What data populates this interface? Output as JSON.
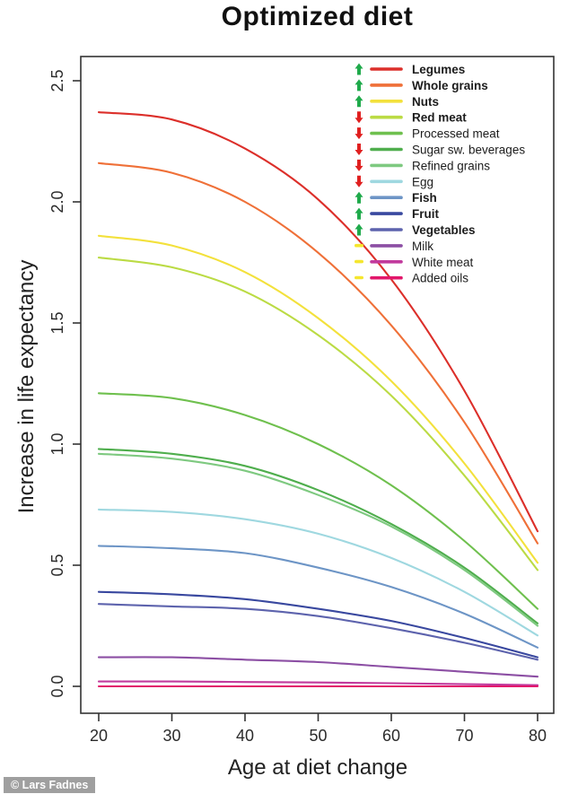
{
  "watermark": "© Lars Fadnes",
  "chart_data": {
    "type": "line",
    "title": "Optimized diet",
    "xlabel": "Age at diet change",
    "ylabel": "Increase in life expectancy",
    "x": [
      20,
      30,
      40,
      50,
      60,
      70,
      80
    ],
    "x_tick_labels": [
      "20",
      "30",
      "40",
      "50",
      "60",
      "70",
      "80"
    ],
    "y_ticks": [
      0.0,
      0.5,
      1.0,
      1.5,
      2.0,
      2.5
    ],
    "y_tick_labels": [
      "0.0",
      "0.5",
      "1.0",
      "1.5",
      "2.0",
      "2.5"
    ],
    "xlim": [
      20,
      80
    ],
    "ylim": [
      0,
      2.5
    ],
    "grid": false,
    "legend_position": "top-right-inside",
    "axis_color": "#333333",
    "trend_colors": {
      "up": "#1faa4b",
      "down": "#e02020",
      "neutral": "#f5e62e"
    },
    "series": [
      {
        "name": "Legumes",
        "color": "#dc2f2a",
        "trend": "up",
        "bold": true,
        "values": [
          2.37,
          2.34,
          2.22,
          2.01,
          1.68,
          1.22,
          0.64
        ]
      },
      {
        "name": "Whole grains",
        "color": "#ef7038",
        "trend": "up",
        "bold": true,
        "values": [
          2.16,
          2.12,
          2.0,
          1.79,
          1.49,
          1.09,
          0.59
        ]
      },
      {
        "name": "Nuts",
        "color": "#f3e13c",
        "trend": "up",
        "bold": true,
        "values": [
          1.86,
          1.82,
          1.71,
          1.52,
          1.26,
          0.92,
          0.51
        ]
      },
      {
        "name": "Red meat",
        "color": "#bbdb44",
        "trend": "down",
        "bold": true,
        "values": [
          1.77,
          1.73,
          1.63,
          1.45,
          1.2,
          0.87,
          0.48
        ]
      },
      {
        "name": "Processed meat",
        "color": "#6fc04e",
        "trend": "down",
        "bold": false,
        "values": [
          1.21,
          1.19,
          1.12,
          1.0,
          0.83,
          0.6,
          0.32
        ]
      },
      {
        "name": "Sugar  sw. beverages",
        "color": "#4fae4d",
        "trend": "down",
        "bold": false,
        "values": [
          0.98,
          0.96,
          0.91,
          0.81,
          0.67,
          0.49,
          0.26
        ]
      },
      {
        "name": "Refined grains",
        "color": "#7ec980",
        "trend": "down",
        "bold": false,
        "values": [
          0.96,
          0.94,
          0.89,
          0.79,
          0.66,
          0.48,
          0.25
        ]
      },
      {
        "name": "Egg",
        "color": "#9fd8e0",
        "trend": "down",
        "bold": false,
        "values": [
          0.73,
          0.72,
          0.69,
          0.63,
          0.53,
          0.39,
          0.21
        ]
      },
      {
        "name": "Fish",
        "color": "#6d95c6",
        "trend": "up",
        "bold": true,
        "values": [
          0.58,
          0.57,
          0.55,
          0.49,
          0.41,
          0.3,
          0.16
        ]
      },
      {
        "name": "Fruit",
        "color": "#39489f",
        "trend": "up",
        "bold": true,
        "values": [
          0.39,
          0.38,
          0.36,
          0.32,
          0.27,
          0.2,
          0.12
        ]
      },
      {
        "name": "Vegetables",
        "color": "#5d63ad",
        "trend": "up",
        "bold": true,
        "values": [
          0.34,
          0.33,
          0.32,
          0.29,
          0.24,
          0.18,
          0.11
        ]
      },
      {
        "name": "Milk",
        "color": "#8c4fa4",
        "trend": "neutral",
        "bold": false,
        "values": [
          0.12,
          0.12,
          0.11,
          0.1,
          0.08,
          0.06,
          0.04
        ]
      },
      {
        "name": "White meat",
        "color": "#c13a9d",
        "trend": "neutral",
        "bold": false,
        "values": [
          0.02,
          0.02,
          0.018,
          0.016,
          0.013,
          0.009,
          0.005
        ]
      },
      {
        "name": "Added oils",
        "color": "#e2176b",
        "trend": "neutral",
        "bold": false,
        "values": [
          0.0,
          0.0,
          0.0,
          0.0,
          0.0,
          0.0,
          0.0
        ]
      }
    ]
  }
}
